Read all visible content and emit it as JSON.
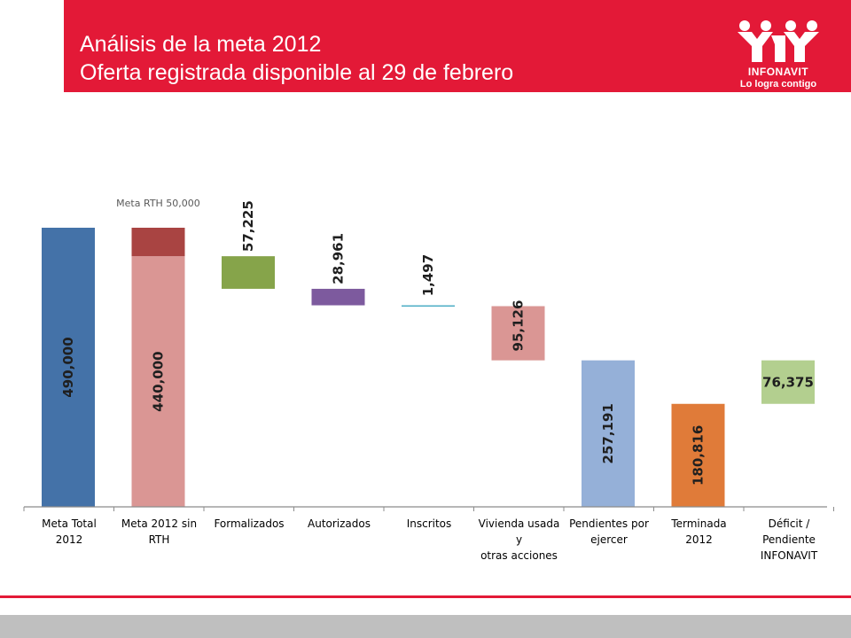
{
  "slide": {
    "title_line1": "Análisis de la meta 2012",
    "title_line2": "Oferta registrada disponible al 29 de febrero"
  },
  "logo": {
    "name": "INFONAVIT",
    "slogan": "Lo logra contigo"
  },
  "colors": {
    "brand_red": "#e31937",
    "footer_gray": "#bfbfbf"
  },
  "chart_data": {
    "type": "bar",
    "variant": "waterfall",
    "ylim": [
      0,
      500000
    ],
    "grid": false,
    "categories": [
      "Meta Total 2012",
      "Meta 2012 sin RTH",
      "Formalizados",
      "Autorizados",
      "Inscritos",
      "Vivienda usada y otras acciones",
      "Pendientes por ejercer",
      "Terminada 2012",
      "Déficit / Pendiente INFONAVIT"
    ],
    "category_label_lines": [
      [
        "Meta Total",
        "2012"
      ],
      [
        "Meta 2012 sin",
        "RTH"
      ],
      [
        "Formalizados"
      ],
      [
        "Autorizados"
      ],
      [
        "Inscritos"
      ],
      [
        "Vivienda usada",
        "y",
        "otras acciones"
      ],
      [
        "Pendientes por",
        "ejercer"
      ],
      [
        "Terminada",
        "2012"
      ],
      [
        "Déficit /",
        "Pendiente",
        "INFONAVIT"
      ]
    ],
    "bars": [
      {
        "category": "Meta Total 2012",
        "bottom": 0,
        "top": 490000,
        "value": 490000,
        "label": "490,000",
        "color": "#4472a8",
        "label_vertical": true
      },
      {
        "category": "Meta 2012 sin RTH",
        "bottom": 0,
        "top": 440000,
        "value": 440000,
        "label": "440,000",
        "color": "#da9694",
        "label_vertical": true
      },
      {
        "category": "Meta 2012 sin RTH",
        "bottom": 440000,
        "top": 490000,
        "value": 50000,
        "label": "Meta RTH 50,000",
        "color": "#a94442",
        "label_vertical": false,
        "label_style": "annotation"
      },
      {
        "category": "Formalizados",
        "bottom": 382775,
        "top": 440000,
        "value": 57225,
        "label": "57,225",
        "color": "#86a44a",
        "label_vertical": true
      },
      {
        "category": "Autorizados",
        "bottom": 353814,
        "top": 382775,
        "value": 28961,
        "label": "28,961",
        "color": "#7d5a9e",
        "label_vertical": true
      },
      {
        "category": "Inscritos",
        "bottom": 352317,
        "top": 353814,
        "value": 1497,
        "label": "1,497",
        "color": "#4aacc5",
        "label_vertical": true
      },
      {
        "category": "Vivienda usada y otras acciones",
        "bottom": 257191,
        "top": 352317,
        "value": 95126,
        "label": "95,126",
        "color": "#da9694",
        "label_vertical": true
      },
      {
        "category": "Pendientes por ejercer",
        "bottom": 0,
        "top": 257191,
        "value": 257191,
        "label": "257,191",
        "color": "#95b0d8",
        "label_vertical": true
      },
      {
        "category": "Terminada 2012",
        "bottom": 0,
        "top": 180816,
        "value": 180816,
        "label": "180,816",
        "color": "#e07b39",
        "label_vertical": true
      },
      {
        "category": "Déficit / Pendiente INFONAVIT",
        "bottom": 180816,
        "top": 257191,
        "value": 76375,
        "label": "76,375",
        "color": "#b3cf8f",
        "label_vertical": false
      }
    ]
  }
}
